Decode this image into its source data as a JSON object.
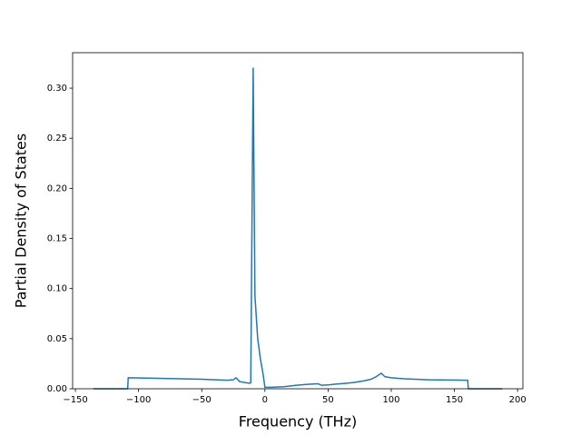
{
  "chart_data": {
    "type": "line",
    "x_label": "Frequency (THz)",
    "y_label": "Partial Density of States",
    "series": [
      {
        "color": "#1f77b4",
        "x": [
          -135.7,
          -108.6,
          -108.2,
          -80,
          -50,
          -30,
          -25,
          -22.9,
          -20,
          -15,
          -12,
          -11.2,
          -9.3,
          -7.9,
          -5.7,
          -3.6,
          -1.5,
          0,
          5,
          15,
          25,
          35,
          42,
          45,
          50,
          55,
          62,
          70,
          78,
          84,
          88,
          92.1,
          95,
          100,
          110,
          130,
          160.5,
          161,
          187.9
        ],
        "values": [
          0,
          0,
          0.011,
          0.0103,
          0.0095,
          0.0085,
          0.009,
          0.011,
          0.0072,
          0.006,
          0.0055,
          0.006,
          0.32,
          0.093,
          0.05,
          0.03,
          0.015,
          0.0015,
          0.0015,
          0.002,
          0.0035,
          0.0045,
          0.005,
          0.0035,
          0.0038,
          0.0045,
          0.0052,
          0.0062,
          0.0078,
          0.0095,
          0.012,
          0.0155,
          0.012,
          0.011,
          0.01,
          0.009,
          0.0085,
          0,
          0
        ]
      }
    ],
    "xlim": [
      -152.2,
      204.2
    ],
    "ylim": [
      0,
      0.3354
    ],
    "xticks": [
      {
        "value": -150,
        "label": "−150"
      },
      {
        "value": -100,
        "label": "−100"
      },
      {
        "value": -50,
        "label": "−50"
      },
      0,
      50,
      100,
      150,
      200
    ],
    "yticks": [
      {
        "value": 0,
        "label": "0.00"
      },
      {
        "value": 0.05,
        "label": "0.05"
      },
      {
        "value": 0.1,
        "label": "0.10"
      },
      {
        "value": 0.15,
        "label": "0.15"
      },
      {
        "value": 0.2,
        "label": "0.20"
      },
      {
        "value": 0.25,
        "label": "0.25"
      },
      {
        "value": 0.3,
        "label": "0.30"
      }
    ]
  }
}
